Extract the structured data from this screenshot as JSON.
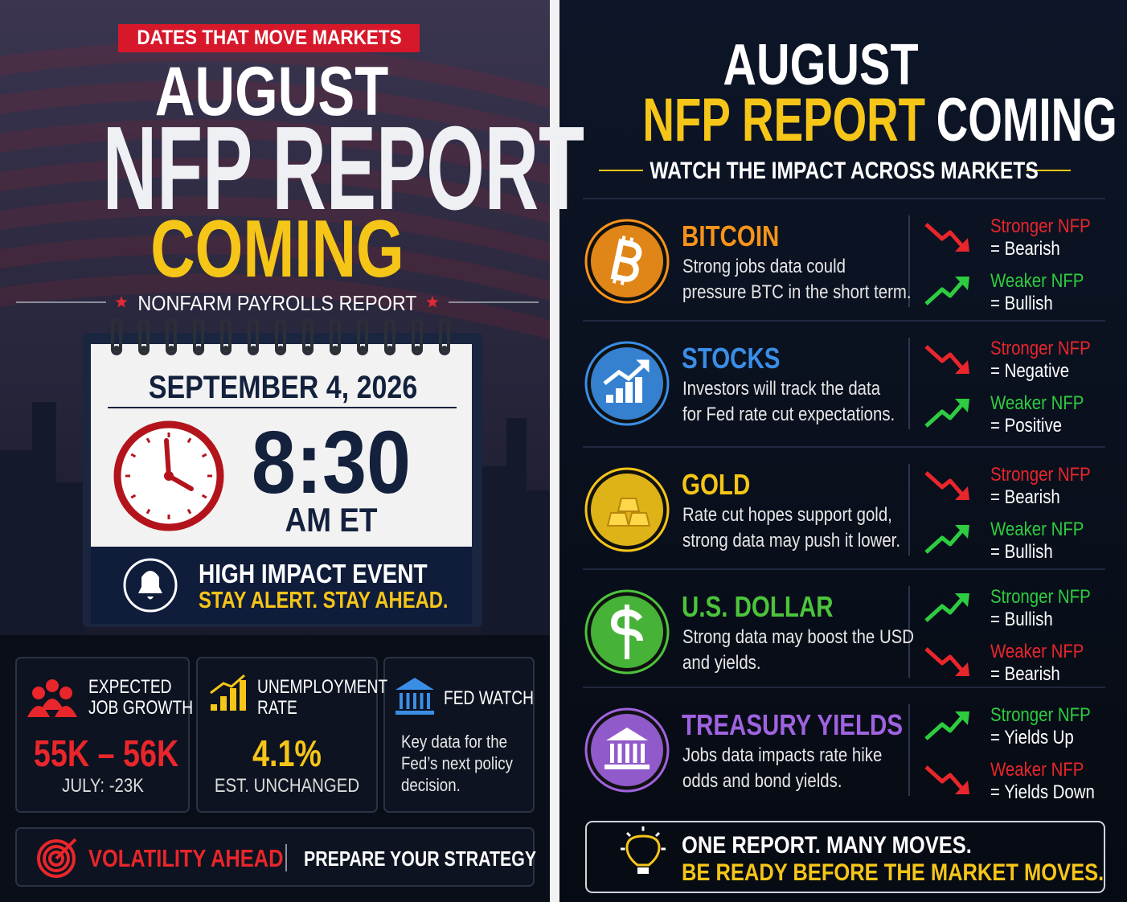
{
  "left": {
    "tag": "DATES THAT MOVE MARKETS",
    "title": [
      "AUGUST",
      "NFP REPORT",
      "COMING"
    ],
    "subtitle": "NONFARM PAYROLLS REPORT",
    "calendar": {
      "date": "SEPTEMBER 4, 2026",
      "time": "8:30",
      "zone": "AM ET",
      "alert_title": "HIGH IMPACT EVENT",
      "alert_text": "STAY ALERT. STAY AHEAD."
    },
    "stats": [
      {
        "label": [
          "EXPECTED",
          "JOB GROWTH"
        ],
        "value": "55K – 56K",
        "note": "JULY: -23K"
      },
      {
        "label": [
          "UNEMPLOYMENT",
          "RATE"
        ],
        "value": "4.1%",
        "note": "EST. UNCHANGED"
      },
      {
        "label": [
          "FED WATCH"
        ],
        "text": [
          "Key data for the",
          "Fed’s next policy",
          "decision."
        ]
      }
    ],
    "footer": {
      "left": "VOLATILITY AHEAD",
      "right": "PREPARE YOUR STRATEGY"
    }
  },
  "right": {
    "title": [
      "AUGUST",
      "NFP REPORT",
      "COMING"
    ],
    "subtitle": "WATCH THE IMPACT ACROSS MARKETS",
    "markets": [
      {
        "name": "BITCOIN",
        "color": "#f7931a",
        "description": [
          "Strong jobs data could",
          "pressure BTC in the short term."
        ],
        "impacts": [
          {
            "label": "Stronger NFP",
            "effect": "= Bearish",
            "direction": "down"
          },
          {
            "label": "Weaker NFP",
            "effect": "= Bullish",
            "direction": "up"
          }
        ]
      },
      {
        "name": "STOCKS",
        "color": "#3a8ee6",
        "description": [
          "Investors will track the data",
          "for Fed rate cut expectations."
        ],
        "impacts": [
          {
            "label": "Stronger NFP",
            "effect": "= Negative",
            "direction": "down"
          },
          {
            "label": "Weaker NFP",
            "effect": "= Positive",
            "direction": "up"
          }
        ]
      },
      {
        "name": "GOLD",
        "color": "#f5c518",
        "description": [
          "Rate cut hopes support gold,",
          "strong data may push it lower."
        ],
        "impacts": [
          {
            "label": "Stronger NFP",
            "effect": "= Bearish",
            "direction": "down"
          },
          {
            "label": "Weaker NFP",
            "effect": "= Bullish",
            "direction": "up"
          }
        ]
      },
      {
        "name": "U.S. DOLLAR",
        "color": "#4cc43c",
        "description": [
          "Strong data may boost the USD",
          "and yields."
        ],
        "impacts": [
          {
            "label": "Stronger NFP",
            "effect": "= Bullish",
            "direction": "up"
          },
          {
            "label": "Weaker NFP",
            "effect": "= Bearish",
            "direction": "down"
          }
        ]
      },
      {
        "name": "TREASURY YIELDS",
        "color": "#a063e0",
        "description": [
          "Jobs data impacts rate hike",
          "odds and bond yields."
        ],
        "impacts": [
          {
            "label": "Stronger NFP",
            "effect": "= Yields Up",
            "direction": "up"
          },
          {
            "label": "Weaker NFP",
            "effect": "= Yields Down",
            "direction": "down"
          }
        ]
      }
    ],
    "footer": [
      "ONE REPORT. MANY MOVES.",
      "BE READY BEFORE THE MARKET MOVES."
    ]
  }
}
